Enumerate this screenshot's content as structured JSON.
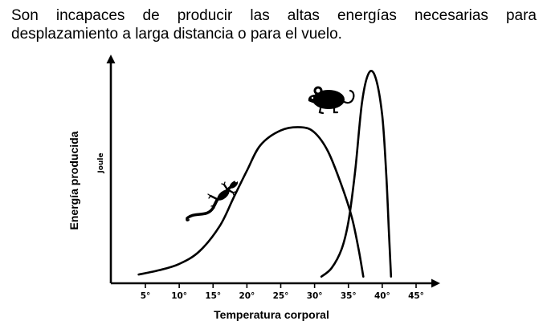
{
  "intro_text": "Son incapaces de producir las altas energías necesarias para desplazamiento a larga distancia o para el vuelo.",
  "colors": {
    "ink": "#000000",
    "background": "#ffffff"
  },
  "chart_data": {
    "type": "line",
    "title": "",
    "xlabel": "Temperatura corporal",
    "ylabel": "Energía producida",
    "yunit": "Joule",
    "xlim": [
      0,
      48
    ],
    "ylim": [
      0,
      100
    ],
    "x_ticks": [
      5,
      10,
      15,
      20,
      25,
      30,
      35,
      40,
      45
    ],
    "x_tick_labels": [
      "5°",
      "10°",
      "15°",
      "20°",
      "25°",
      "30°",
      "35°",
      "40°",
      "45°"
    ],
    "series": [
      {
        "name": "lizard",
        "icon": "lizard-icon",
        "x": [
          4,
          7,
          10,
          13,
          16,
          18,
          20,
          22,
          25,
          28,
          30,
          32,
          34,
          35.5,
          36.5,
          37.2
        ],
        "y": [
          3,
          5,
          8,
          14,
          26,
          39,
          52,
          64,
          71,
          72.5,
          70,
          61,
          45,
          30,
          15,
          2
        ]
      },
      {
        "name": "rat",
        "icon": "rat-icon",
        "x": [
          31,
          32.5,
          34,
          35,
          36,
          37,
          38,
          39,
          40,
          40.6,
          41,
          41.3
        ],
        "y": [
          2,
          6,
          15,
          28,
          52,
          84,
          98,
          96,
          78,
          50,
          22,
          2
        ]
      }
    ]
  }
}
